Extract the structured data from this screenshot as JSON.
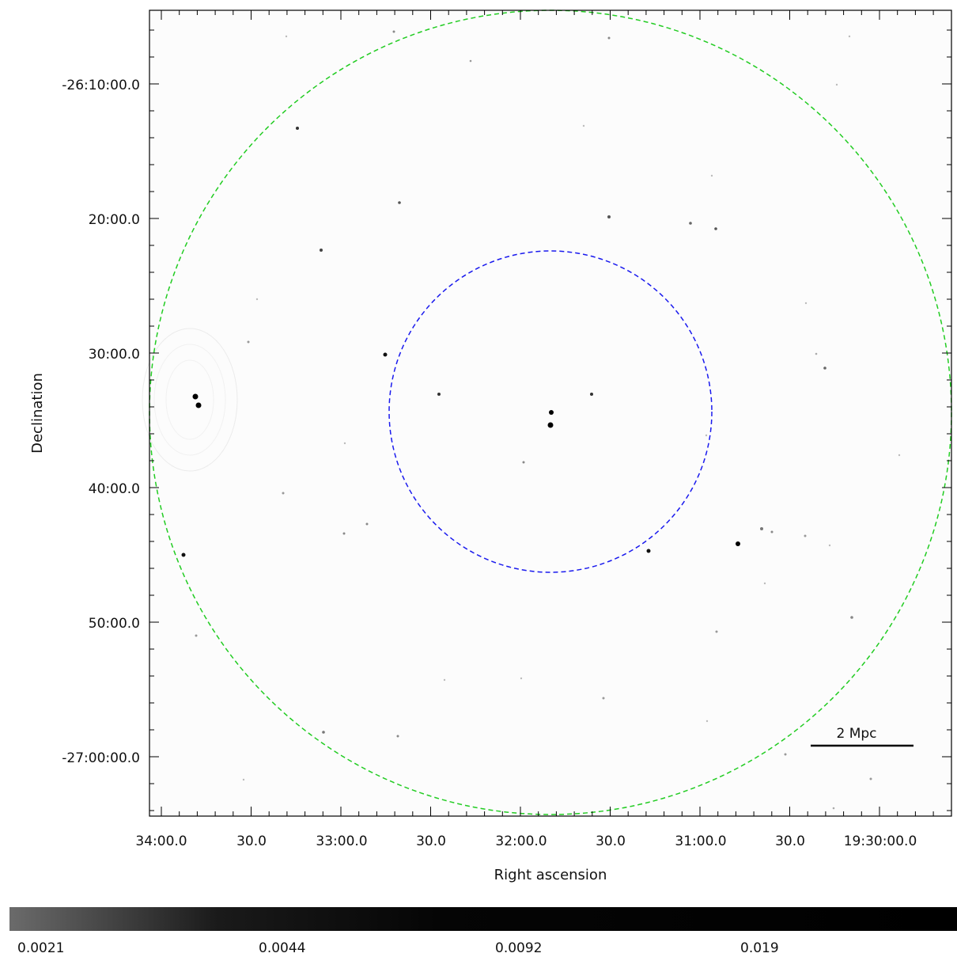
{
  "image": {
    "title": "",
    "xlabel": "Right ascension",
    "ylabel": "Declination",
    "x_ticks": [
      "34:00.0",
      "30.0",
      "33:00.0",
      "30.0",
      "32:00.0",
      "30.0",
      "31:00.0",
      "30.0",
      "19:30:00.0"
    ],
    "y_ticks": [
      "-26:10:00.0",
      "20:00.0",
      "30:00.0",
      "40:00.0",
      "50:00.0",
      "-27:00:00.0"
    ],
    "scale_bar_label": "2 Mpc",
    "colors": {
      "outer_circle": "#22cc22",
      "inner_circle": "#1a1aee",
      "background": "#fdfdfd"
    }
  },
  "colorbar": {
    "labels": [
      "0.0021",
      "0.0044",
      "0.0092",
      "0.019"
    ]
  }
}
